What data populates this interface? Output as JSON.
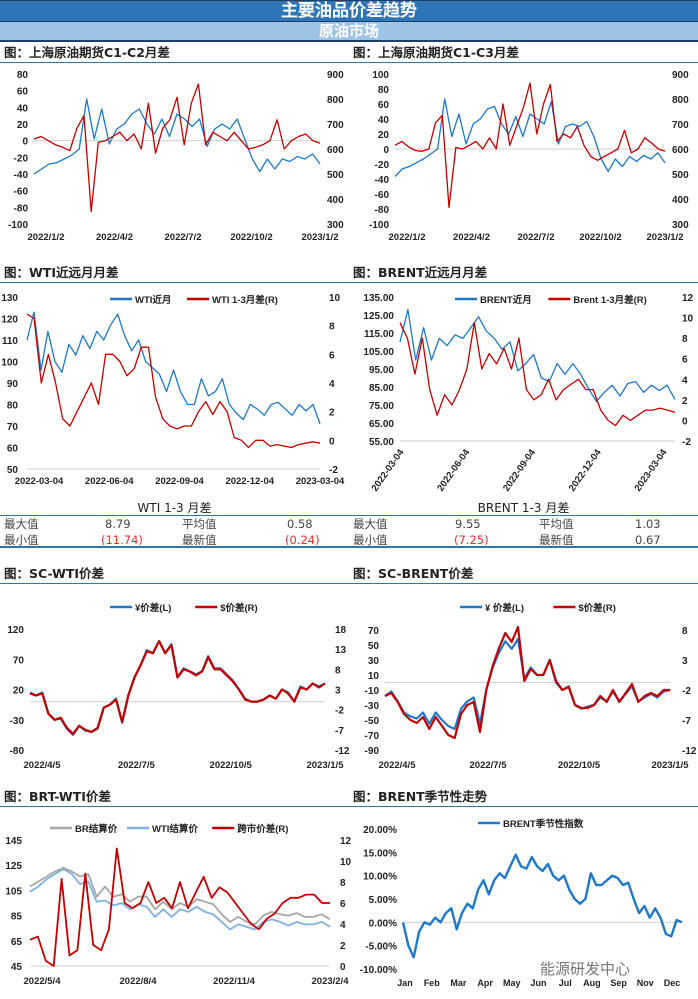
{
  "header": {
    "title": "主要油品价差趋势",
    "subtitle": "原油市场"
  },
  "watermark": "能源研发中心",
  "chart_data": [
    {
      "type": "line",
      "title": "图：上海原油期货C1-C2月差",
      "xticks": [
        "2022/1/2",
        "2022/4/2",
        "2022/7/2",
        "2022/10/2",
        "2023/1/2"
      ],
      "yleft": {
        "range": [
          -100,
          80
        ],
        "ticks": [
          "80",
          "60",
          "40",
          "20",
          "0",
          "-20",
          "-40",
          "-60",
          "-80",
          "-100"
        ]
      },
      "yright": {
        "range": [
          300,
          900
        ],
        "ticks": [
          "900",
          "800",
          "700",
          "600",
          "500",
          "400",
          "300"
        ]
      },
      "zero_line": true,
      "series": [
        {
          "axis": "right",
          "color": "#1f78c8",
          "values": [
            500,
            520,
            540,
            545,
            560,
            575,
            600,
            800,
            640,
            760,
            620,
            680,
            700,
            740,
            760,
            700,
            660,
            720,
            650,
            740,
            720,
            690,
            720,
            610,
            680,
            700,
            680,
            720,
            640,
            560,
            510,
            560,
            520,
            560,
            550,
            570,
            560,
            580,
            540
          ]
        },
        {
          "axis": "left",
          "color": "#c00000",
          "values": [
            2,
            5,
            0,
            -5,
            -8,
            -12,
            15,
            30,
            -85,
            -2,
            0,
            5,
            10,
            0,
            8,
            -10,
            45,
            -15,
            15,
            25,
            52,
            -5,
            45,
            68,
            -5,
            10,
            5,
            0,
            10,
            0,
            -10,
            -8,
            -5,
            0,
            25,
            -10,
            0,
            5,
            8,
            0,
            -3
          ]
        }
      ]
    },
    {
      "type": "line",
      "title": "图：上海原油期货C1-C3月差",
      "xticks": [
        "2022/1/2",
        "2022/4/2",
        "2022/7/2",
        "2022/10/2",
        "2023/1/2"
      ],
      "yleft": {
        "range": [
          -100,
          100
        ],
        "ticks": [
          "100",
          "80",
          "60",
          "40",
          "20",
          "0",
          "-20",
          "-40",
          "-60",
          "-80",
          "-100"
        ]
      },
      "yright": {
        "range": [
          300,
          900
        ],
        "ticks": [
          "900",
          "800",
          "700",
          "600",
          "500",
          "400",
          "300"
        ]
      },
      "zero_line": true,
      "series": [
        {
          "axis": "right",
          "color": "#1f78c8",
          "values": [
            490,
            520,
            530,
            545,
            560,
            580,
            600,
            800,
            650,
            740,
            620,
            700,
            720,
            760,
            770,
            700,
            660,
            730,
            650,
            740,
            720,
            700,
            790,
            620,
            690,
            700,
            690,
            710,
            650,
            560,
            510,
            560,
            530,
            570,
            550,
            575,
            560,
            585,
            545
          ]
        },
        {
          "axis": "left",
          "color": "#c00000",
          "values": [
            5,
            10,
            3,
            -2,
            -3,
            0,
            35,
            45,
            -78,
            2,
            0,
            5,
            10,
            0,
            15,
            0,
            60,
            5,
            30,
            55,
            88,
            20,
            60,
            86,
            10,
            20,
            15,
            30,
            5,
            -10,
            -15,
            -10,
            -5,
            0,
            25,
            -5,
            0,
            15,
            8,
            0,
            -3
          ]
        }
      ]
    },
    {
      "type": "line",
      "title": "图：WTI近远月月差",
      "xticks": [
        "2022-03-04",
        "2022-06-04",
        "2022-09-04",
        "2022-12-04",
        "2023-03-04"
      ],
      "legend": "top",
      "yleft": {
        "range": [
          50,
          130
        ],
        "ticks": [
          "130",
          "120",
          "110",
          "100",
          "90",
          "80",
          "70",
          "60",
          "50"
        ]
      },
      "yright": {
        "range": [
          -2,
          10
        ],
        "ticks": [
          "10",
          "8",
          "6",
          "4",
          "2",
          "0",
          "-2"
        ]
      },
      "series": [
        {
          "name": "WTI近月",
          "axis": "left",
          "color": "#1f78c8",
          "values": [
            110,
            123,
            96,
            114,
            100,
            95,
            108,
            103,
            112,
            106,
            114,
            110,
            117,
            122,
            112,
            105,
            110,
            100,
            97,
            94,
            86,
            96,
            86,
            80,
            80,
            92,
            84,
            86,
            92,
            80,
            76,
            73,
            80,
            78,
            75,
            80,
            81,
            78,
            75,
            80,
            77,
            80,
            71
          ]
        },
        {
          "name": "WTI 1-3月差(R)",
          "axis": "right",
          "color": "#c00000",
          "values": [
            8.8,
            8.5,
            4,
            6,
            4,
            1.5,
            1,
            2,
            3,
            4,
            2.5,
            6,
            6,
            5.5,
            4.5,
            5,
            6.5,
            6.5,
            3,
            1.5,
            1,
            0.8,
            1,
            1,
            2,
            2.7,
            1.8,
            2.7,
            2,
            0.2,
            0,
            -0.5,
            0,
            0,
            -0.4,
            -0.3,
            -0.4,
            -0.5,
            -0.3,
            -0.2,
            -0.1,
            -0.2
          ]
        }
      ],
      "stats": {
        "title": "WTI 1-3 月差",
        "max_label": "最大值",
        "max": "8.79",
        "avg_label": "平均值",
        "avg": "0.58",
        "min_label": "最小值",
        "min": "(11.74)",
        "latest_label": "最新值",
        "latest": "(0.24)"
      }
    },
    {
      "type": "line",
      "title": "图：BRENT近远月月差",
      "xticks": [
        "2022-03-04",
        "2022-06-04",
        "2022-09-04",
        "2022-12-04",
        "2023-03-04"
      ],
      "legend": "top",
      "yleft": {
        "range": [
          55,
          135
        ],
        "ticks": [
          "135.00",
          "125.00",
          "115.00",
          "105.00",
          "95.00",
          "85.00",
          "75.00",
          "65.00",
          "55.00"
        ]
      },
      "yright": {
        "range": [
          -2,
          12
        ],
        "ticks": [
          "12",
          "10",
          "8",
          "6",
          "4",
          "2",
          "0",
          "-2"
        ]
      },
      "series": [
        {
          "name": "BRENT近月",
          "axis": "left",
          "color": "#1f78c8",
          "values": [
            110,
            128,
            100,
            118,
            100,
            112,
            108,
            114,
            112,
            118,
            124,
            116,
            112,
            106,
            110,
            94,
            98,
            103,
            90,
            88,
            98,
            92,
            98,
            92,
            84,
            77,
            82,
            86,
            80,
            87,
            88,
            82,
            86,
            83,
            86,
            78
          ]
        },
        {
          "name": "Brent 1-3月差(R)",
          "axis": "right",
          "color": "#c00000",
          "values": [
            9.5,
            8,
            4.5,
            8,
            3,
            0.5,
            2.5,
            1.5,
            3,
            5,
            9.5,
            5,
            6.5,
            5.5,
            7,
            5,
            8,
            3,
            2,
            2.5,
            4,
            2,
            3,
            3.5,
            4,
            3,
            3,
            1,
            0,
            -0.5,
            0.5,
            0,
            0.5,
            1,
            1,
            1.2,
            1,
            0.8
          ]
        }
      ],
      "stats": {
        "title": "BRENT 1-3 月差",
        "max_label": "最大值",
        "max": "9.55",
        "avg_label": "平均值",
        "avg": "1.03",
        "min_label": "最小值",
        "min": "(7.25)",
        "latest_label": "最新值",
        "latest": "0.67"
      }
    },
    {
      "type": "line",
      "title": "图：SC-WTI价差",
      "xticks": [
        "2022/4/5",
        "2022/7/5",
        "2022/10/5",
        "2023/1/5"
      ],
      "legend": "top",
      "yleft": {
        "range": [
          -80,
          120
        ],
        "ticks": [
          "120",
          "70",
          "20",
          "-30",
          "-80"
        ]
      },
      "yright": {
        "range": [
          -12,
          18
        ],
        "ticks": [
          "18",
          "13",
          "8",
          "3",
          "-2",
          "-7",
          "-12"
        ]
      },
      "zero_line": true,
      "series": [
        {
          "name": "¥价差(L)",
          "axis": "left",
          "color": "#1f78c8",
          "values": [
            15,
            10,
            15,
            -20,
            -30,
            -28,
            -45,
            -55,
            -40,
            -48,
            -50,
            -45,
            -10,
            -5,
            5,
            -35,
            10,
            40,
            60,
            85,
            80,
            100,
            80,
            95,
            40,
            55,
            50,
            45,
            50,
            75,
            55,
            55,
            45,
            35,
            20,
            5,
            0,
            0,
            3,
            10,
            5,
            20,
            15,
            0,
            25,
            20,
            30,
            25,
            30
          ]
        },
        {
          "name": "$价差(R)",
          "axis": "right",
          "color": "#c00000",
          "values": [
            2,
            1.5,
            2,
            -3,
            -4.5,
            -4,
            -6.5,
            -8,
            -6,
            -7,
            -7.5,
            -6.5,
            -1.5,
            -0.8,
            0.5,
            -5,
            1.5,
            6,
            9,
            12.5,
            12,
            15,
            12,
            14,
            6,
            8,
            7.5,
            6.5,
            7.5,
            11,
            8,
            8,
            6.5,
            5,
            3,
            0.5,
            0,
            0,
            0.5,
            1.5,
            0.7,
            3,
            2,
            0,
            3.5,
            3,
            4.5,
            3.5,
            4.5
          ]
        }
      ]
    },
    {
      "type": "line",
      "title": "图：SC-BRENT价差",
      "xticks": [
        "2022/4/5",
        "2022/7/5",
        "2022/10/5",
        "2023/1/5"
      ],
      "legend": "top",
      "yleft": {
        "range": [
          -90,
          70
        ],
        "ticks": [
          "70",
          "50",
          "30",
          "10",
          "-10",
          "-30",
          "-50",
          "-70",
          "-90"
        ]
      },
      "yright": {
        "range": [
          -12,
          8
        ],
        "ticks": [
          "8",
          "3",
          "-2",
          "-7",
          "-12"
        ]
      },
      "zero_line": true,
      "series": [
        {
          "name": "¥ 价差(L)",
          "axis": "left",
          "color": "#1f78c8",
          "values": [
            -18,
            -12,
            -25,
            -40,
            -45,
            -48,
            -40,
            -55,
            -40,
            -50,
            -58,
            -62,
            -35,
            -25,
            -20,
            -55,
            -10,
            20,
            40,
            55,
            45,
            58,
            5,
            20,
            10,
            10,
            30,
            0,
            -10,
            -5,
            -30,
            -35,
            -32,
            -30,
            -20,
            -25,
            -12,
            -25,
            -15,
            -5,
            -25,
            -20,
            -15,
            -20,
            -12,
            -10
          ]
        },
        {
          "name": "$价差(R)",
          "axis": "right",
          "color": "#c00000",
          "values": [
            -3,
            -2.5,
            -4,
            -6,
            -7,
            -7.5,
            -6.5,
            -8.5,
            -6.5,
            -8,
            -9.5,
            -10,
            -6,
            -4.5,
            -4,
            -9,
            -2,
            2,
            5,
            7.5,
            6,
            8.5,
            -0.5,
            1.5,
            0.5,
            0.5,
            3,
            -0.5,
            -2,
            -1.5,
            -4.5,
            -5,
            -5,
            -4.5,
            -3,
            -4,
            -2,
            -4,
            -2.5,
            -1,
            -4,
            -3,
            -2.5,
            -3,
            -2,
            -2
          ]
        }
      ]
    },
    {
      "type": "line",
      "title": "图：BRT-WTI价差",
      "xticks": [
        "2022/5/4",
        "2022/8/4",
        "2022/11/4",
        "2023/2/4"
      ],
      "legend": "top",
      "yleft": {
        "range": [
          45,
          145
        ],
        "ticks": [
          "145",
          "125",
          "105",
          "85",
          "65",
          "45"
        ]
      },
      "yright": {
        "range": [
          0,
          12
        ],
        "ticks": [
          "12",
          "10",
          "8",
          "6",
          "4",
          "2",
          "0"
        ]
      },
      "series": [
        {
          "name": "BR结算价",
          "axis": "left",
          "color": "#a6a6a6",
          "values": [
            108,
            112,
            116,
            120,
            123,
            120,
            116,
            118,
            100,
            108,
            100,
            102,
            96,
            100,
            100,
            90,
            96,
            90,
            95,
            92,
            98,
            96,
            94,
            86,
            80,
            84,
            80,
            78,
            85,
            88,
            86,
            85,
            87,
            84,
            84,
            86,
            82
          ]
        },
        {
          "name": "WTI结算价",
          "axis": "left",
          "color": "#7fb2e0",
          "values": [
            104,
            108,
            114,
            118,
            122,
            118,
            110,
            112,
            96,
            97,
            93,
            95,
            90,
            94,
            92,
            84,
            90,
            84,
            90,
            88,
            92,
            88,
            86,
            80,
            74,
            78,
            76,
            74,
            80,
            82,
            80,
            77,
            80,
            78,
            78,
            80,
            76
          ]
        },
        {
          "name": "跨市价差(R)",
          "axis": "right",
          "color": "#c00000",
          "values": [
            2.5,
            2.8,
            0.5,
            0,
            8.3,
            1,
            1.5,
            8.8,
            2,
            1.5,
            3.5,
            11.2,
            6,
            5.5,
            6,
            8,
            6,
            6.5,
            5.5,
            8,
            5.5,
            7,
            8.5,
            6.5,
            7.5,
            7,
            6,
            5,
            4,
            3.5,
            4.5,
            5,
            6,
            6.5,
            6.5,
            6.8,
            6.8,
            6,
            6
          ]
        }
      ]
    },
    {
      "type": "line",
      "title": "图：BRENT季节性走势",
      "xticks": [
        "Jan",
        "Feb",
        "Mar",
        "Apr",
        "May",
        "Jun",
        "Jul",
        "Aug",
        "Sep",
        "Nov",
        "Dec"
      ],
      "legend": "top",
      "yleft": {
        "range": [
          -10,
          20
        ],
        "ticks": [
          "20.00%",
          "15.00%",
          "10.00%",
          "5.00%",
          "0.00%",
          "-5.00%",
          "-10.00%"
        ]
      },
      "zero_line": true,
      "series": [
        {
          "name": "BRENT季节性指数",
          "axis": "left",
          "color": "#1f78c8",
          "values": [
            0,
            -5,
            -7.5,
            -2,
            0,
            -0.5,
            1,
            0,
            2,
            3,
            -1.5,
            2,
            4,
            3,
            7,
            9,
            6,
            9,
            10.5,
            9.5,
            12,
            14.5,
            12,
            11.5,
            14,
            12,
            11,
            12.5,
            10,
            9,
            10,
            7,
            5,
            4,
            5,
            10.5,
            8,
            8,
            9,
            10,
            9.5,
            8,
            8.5,
            5,
            2,
            3.5,
            1,
            3,
            1,
            -2.5,
            -3,
            0.5,
            0
          ]
        }
      ]
    }
  ]
}
